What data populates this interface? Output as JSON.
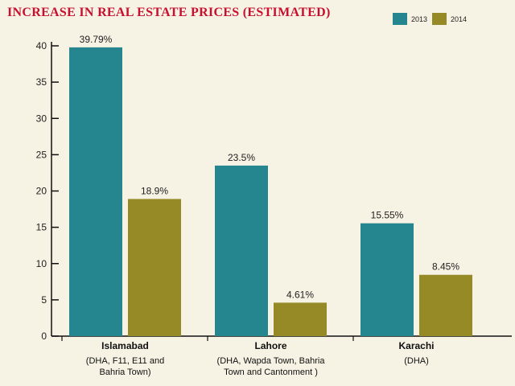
{
  "chart_data": {
    "type": "bar",
    "title": "INCREASE IN REAL ESTATE PRICES (ESTIMATED)",
    "categories": [
      "Islamabad",
      "Lahore",
      "Karachi"
    ],
    "category_subtitles": [
      [
        "(DHA, F11, E11 and",
        "Bahria Town)"
      ],
      [
        "(DHA, Wapda Town, Bahria",
        "Town and Cantonment )"
      ],
      [
        "(DHA)"
      ]
    ],
    "series": [
      {
        "name": "2013",
        "values": [
          39.79,
          23.5,
          15.55
        ],
        "labels": [
          "39.79%",
          "23.5%",
          "15.55%"
        ],
        "color": "#26868f"
      },
      {
        "name": "2014",
        "values": [
          18.9,
          4.61,
          8.45
        ],
        "labels": [
          "18.9%",
          "4.61%",
          "8.45%"
        ],
        "color": "#968a26"
      }
    ],
    "ylim": [
      0,
      40
    ],
    "yticks": [
      0,
      5,
      10,
      15,
      20,
      25,
      30,
      35,
      40
    ],
    "xlabel": "",
    "ylabel": "",
    "grid": false,
    "legend_position": "top-right"
  }
}
